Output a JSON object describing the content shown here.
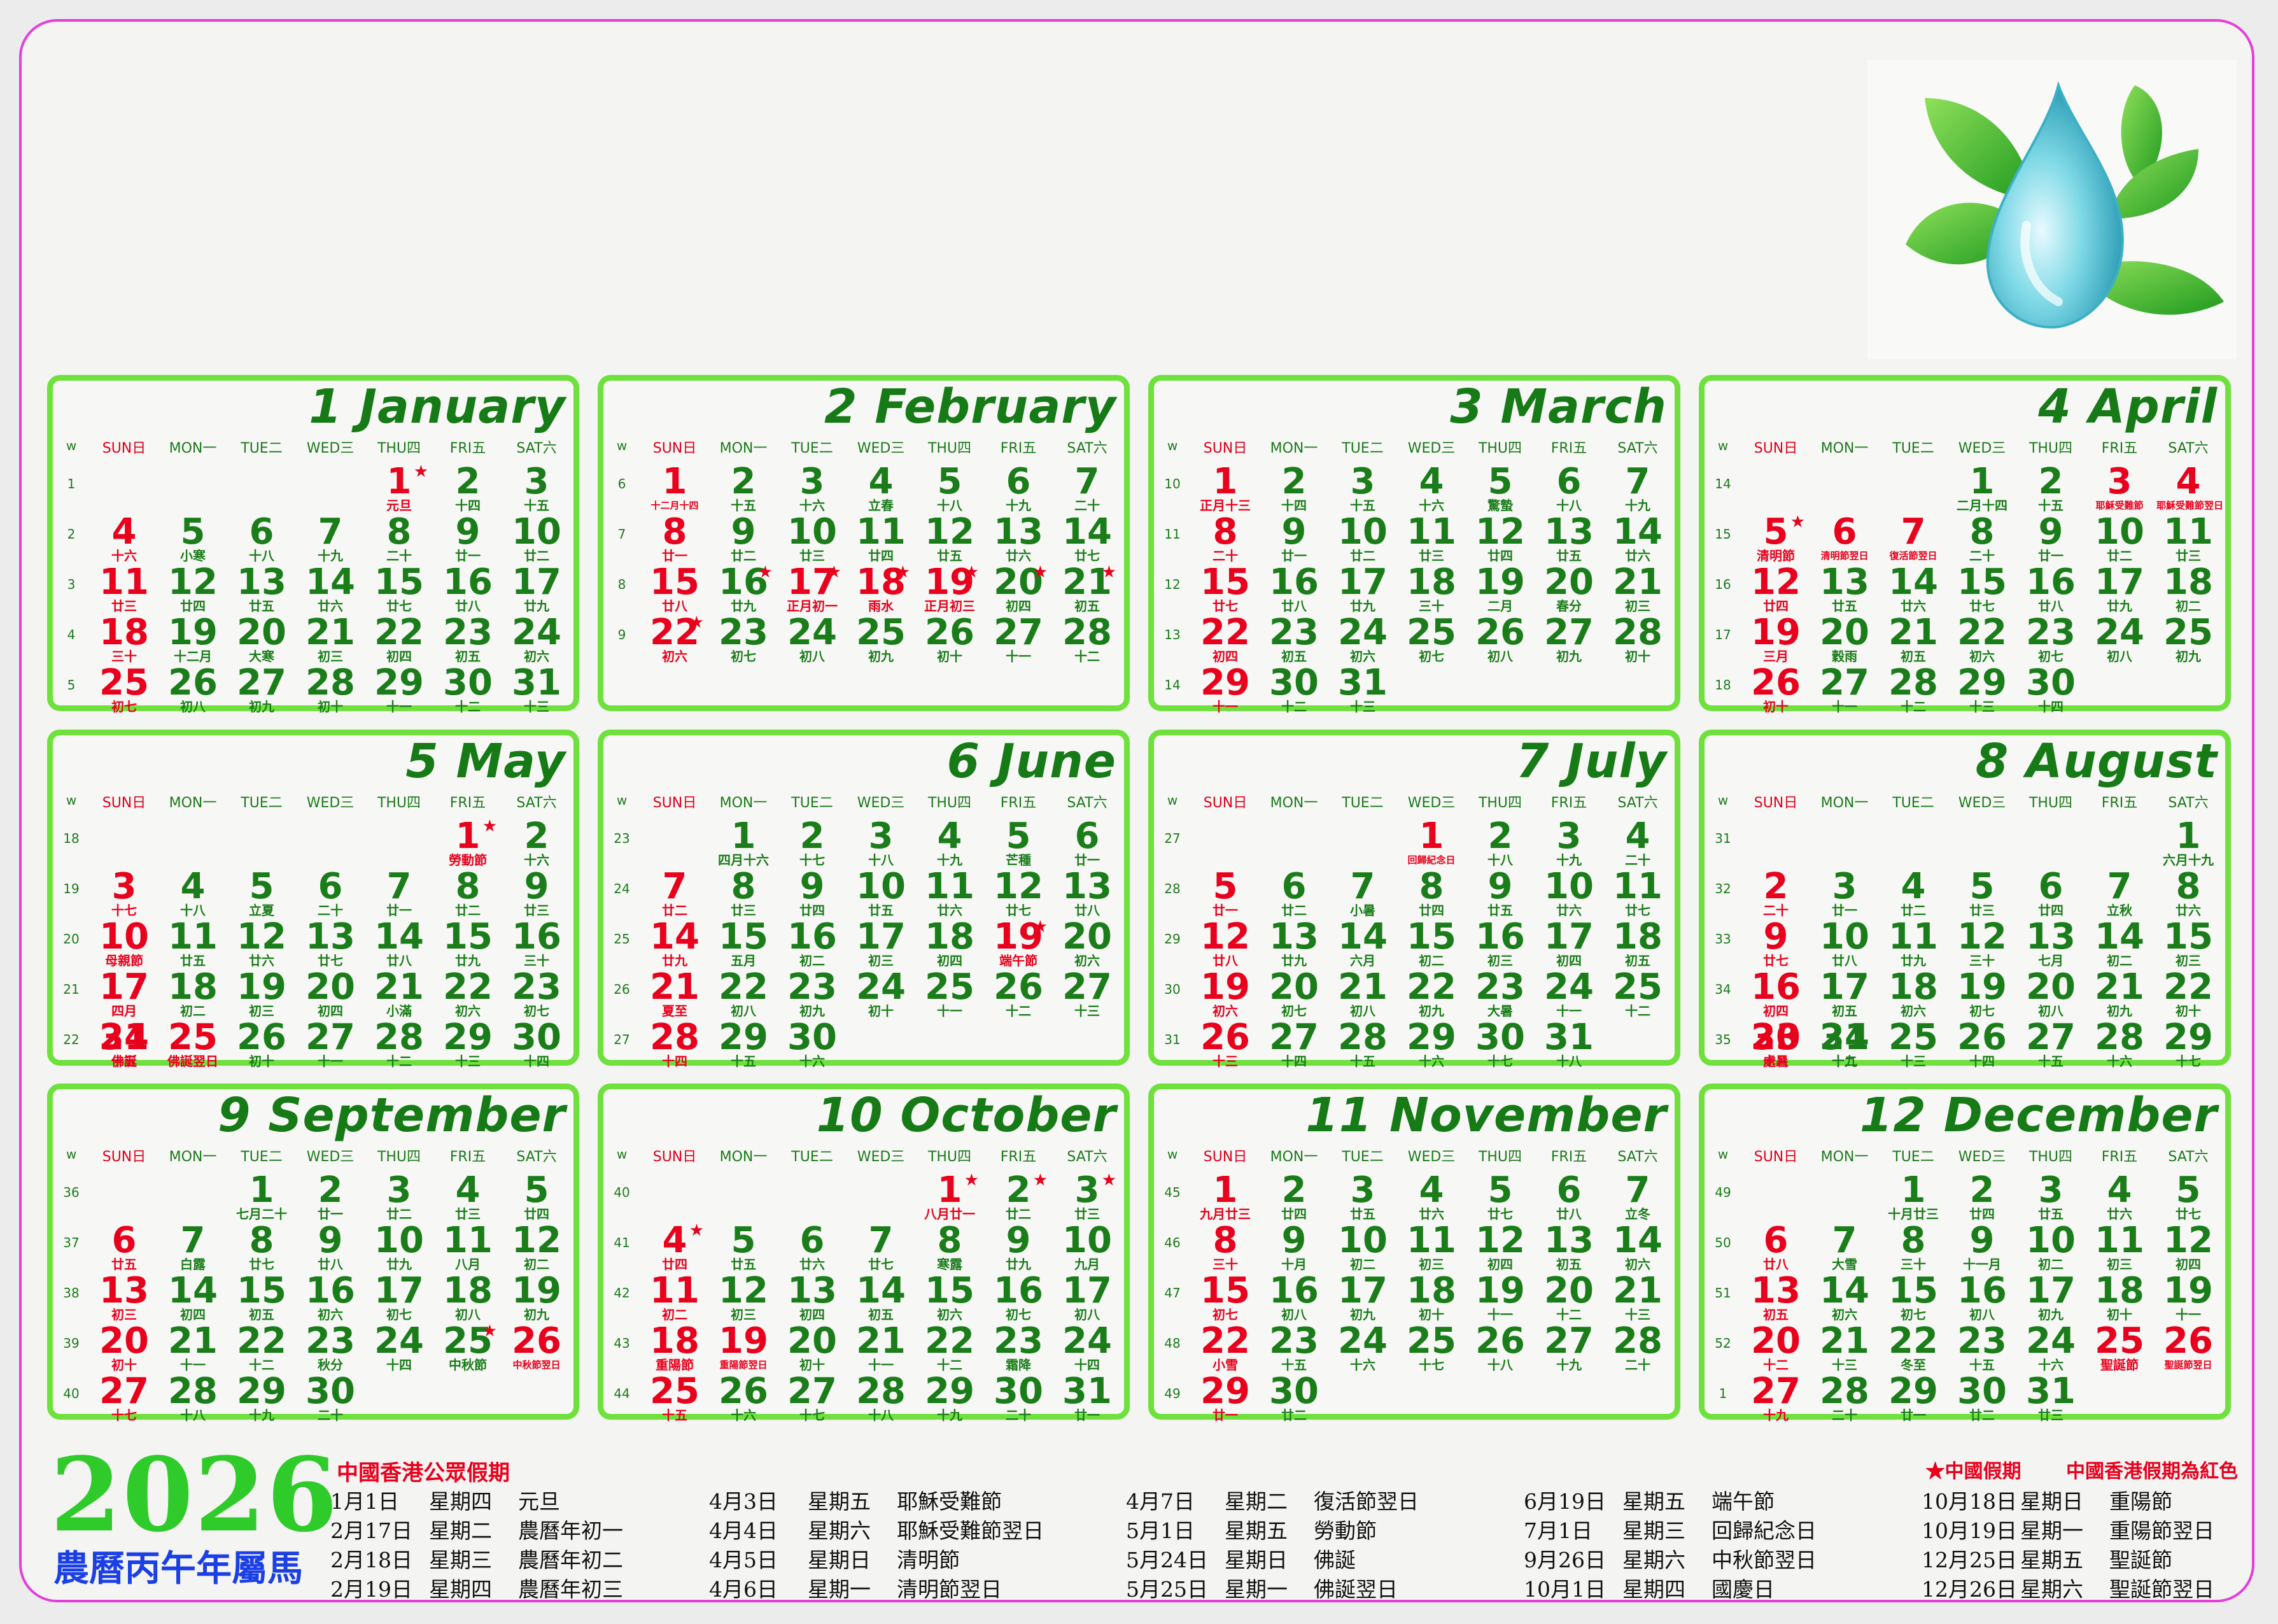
{
  "year": "2026",
  "zodiac": "農曆丙午年屬馬",
  "weekdays": [
    {
      "label": "SUN日",
      "sunday": true
    },
    {
      "label": "MON一"
    },
    {
      "label": "TUE二"
    },
    {
      "label": "WED三"
    },
    {
      "label": "THU四"
    },
    {
      "label": "FRI五"
    },
    {
      "label": "SAT六"
    }
  ],
  "week_label": "w",
  "months": [
    {
      "title": "1 January",
      "start": 4,
      "days": 31,
      "weeks": [
        1,
        2,
        3,
        4,
        5
      ],
      "lunar": [
        "元旦",
        "十四",
        "十五",
        "十六",
        "小寒",
        "十八",
        "十九",
        "二十",
        "廿一",
        "廿二",
        "廿三",
        "廿四",
        "廿五",
        "廿六",
        "廿七",
        "廿八",
        "廿九",
        "三十",
        "十二月",
        "大寒",
        "初三",
        "初四",
        "初五",
        "初六",
        "初七",
        "初八",
        "初九",
        "初十",
        "十一",
        "十二",
        "十三"
      ],
      "red": [
        1,
        4,
        11,
        18,
        25
      ],
      "stars": [
        1
      ]
    },
    {
      "title": "2 February",
      "start": 0,
      "days": 28,
      "weeks": [
        6,
        7,
        8,
        9
      ],
      "lunar": [
        "十二月十四",
        "十五",
        "十六",
        "立春",
        "十八",
        "十九",
        "二十",
        "廿一",
        "廿二",
        "廿三",
        "廿四",
        "廿五",
        "廿六",
        "廿七",
        "廿八",
        "廿九",
        "正月初一",
        "雨水",
        "正月初三",
        "初四",
        "初五",
        "初六",
        "初七",
        "初八",
        "初九",
        "初十",
        "十一",
        "十二"
      ],
      "red": [
        1,
        8,
        15,
        17,
        18,
        19,
        22
      ],
      "stars": [
        16,
        17,
        18,
        19,
        20,
        21,
        22
      ]
    },
    {
      "title": "3 March",
      "start": 0,
      "days": 31,
      "weeks": [
        10,
        11,
        12,
        13,
        14
      ],
      "lunar": [
        "正月十三",
        "十四",
        "十五",
        "十六",
        "驚蟄",
        "十八",
        "十九",
        "二十",
        "廿一",
        "廿二",
        "廿三",
        "廿四",
        "廿五",
        "廿六",
        "廿七",
        "廿八",
        "廿九",
        "三十",
        "二月",
        "春分",
        "初三",
        "初四",
        "初五",
        "初六",
        "初七",
        "初八",
        "初九",
        "初十",
        "十一",
        "十二",
        "十三"
      ],
      "red": [
        1,
        8,
        15,
        22,
        29
      ],
      "stars": []
    },
    {
      "title": "4 April",
      "start": 3,
      "days": 30,
      "weeks": [
        14,
        15,
        16,
        17,
        18
      ],
      "lunar": [
        "二月十四",
        "十五",
        "耶穌受難節",
        "耶穌受難節翌日",
        "清明節",
        "清明節翌日",
        "復活節翌日",
        "二十",
        "廿一",
        "廿二",
        "廿三",
        "廿四",
        "廿五",
        "廿六",
        "廿七",
        "廿八",
        "廿九",
        "初二",
        "三月",
        "穀雨",
        "初五",
        "初六",
        "初七",
        "初八",
        "初九",
        "初十",
        "十一",
        "十二",
        "十三",
        "十四"
      ],
      "red": [
        3,
        4,
        5,
        6,
        7,
        12,
        19,
        26
      ],
      "stars": [
        5
      ]
    },
    {
      "title": "5 May",
      "start": 5,
      "days": 31,
      "weeks": [
        18,
        19,
        20,
        21,
        22
      ],
      "lunar": [
        "勞動節",
        "十六",
        "十七",
        "十八",
        "立夏",
        "二十",
        "廿一",
        "廿二",
        "廿三",
        "母親節",
        "廿五",
        "廿六",
        "廿七",
        "廿八",
        "廿九",
        "三十",
        "四月",
        "初二",
        "初三",
        "初四",
        "小滿",
        "初六",
        "初七",
        "佛誕",
        "佛誕翌日",
        "初十",
        "十一",
        "十二",
        "十三",
        "十四",
        "十五"
      ],
      "red": [
        1,
        3,
        10,
        17,
        24,
        25,
        31
      ],
      "stars": [
        1
      ]
    },
    {
      "title": "6 June",
      "start": 1,
      "days": 30,
      "weeks": [
        23,
        24,
        25,
        26,
        27
      ],
      "lunar": [
        "四月十六",
        "十七",
        "十八",
        "十九",
        "芒種",
        "廿一",
        "廿二",
        "廿三",
        "廿四",
        "廿五",
        "廿六",
        "廿七",
        "廿八",
        "廿九",
        "五月",
        "初二",
        "初三",
        "初四",
        "端午節",
        "初六",
        "夏至",
        "初八",
        "初九",
        "初十",
        "十一",
        "十二",
        "十三",
        "十四",
        "十五",
        "十六"
      ],
      "red": [
        7,
        14,
        19,
        21,
        28
      ],
      "stars": [
        19
      ]
    },
    {
      "title": "7 July",
      "start": 3,
      "days": 31,
      "weeks": [
        27,
        28,
        29,
        30,
        31
      ],
      "lunar": [
        "回歸紀念日",
        "十八",
        "十九",
        "二十",
        "廿一",
        "廿二",
        "小暑",
        "廿四",
        "廿五",
        "廿六",
        "廿七",
        "廿八",
        "廿九",
        "六月",
        "初二",
        "初三",
        "初四",
        "初五",
        "初六",
        "初七",
        "初八",
        "初九",
        "大暑",
        "十一",
        "十二",
        "十三",
        "十四",
        "十五",
        "十六",
        "十七",
        "十八"
      ],
      "red": [
        1,
        5,
        12,
        19,
        26
      ],
      "stars": []
    },
    {
      "title": "8 August",
      "start": 6,
      "days": 31,
      "weeks": [
        31,
        32,
        33,
        34,
        35
      ],
      "lunar": [
        "六月十九",
        "二十",
        "廿一",
        "廿二",
        "廿三",
        "廿四",
        "立秋",
        "廿六",
        "廿七",
        "廿八",
        "廿九",
        "三十",
        "七月",
        "初二",
        "初三",
        "初四",
        "初五",
        "初六",
        "初七",
        "初八",
        "初九",
        "初十",
        "處暑",
        "十二",
        "十三",
        "十四",
        "十五",
        "十六",
        "十七",
        "十八",
        "十九"
      ],
      "red": [
        2,
        9,
        16,
        23,
        30
      ],
      "stars": []
    },
    {
      "title": "9 September",
      "start": 2,
      "days": 30,
      "weeks": [
        36,
        37,
        38,
        39,
        40
      ],
      "lunar": [
        "七月二十",
        "廿一",
        "廿二",
        "廿三",
        "廿四",
        "廿五",
        "白露",
        "廿七",
        "廿八",
        "廿九",
        "八月",
        "初二",
        "初三",
        "初四",
        "初五",
        "初六",
        "初七",
        "初八",
        "初九",
        "初十",
        "十一",
        "十二",
        "秋分",
        "十四",
        "中秋節",
        "中秋節翌日",
        "十七",
        "十八",
        "十九",
        "二十"
      ],
      "red": [
        6,
        13,
        20,
        26,
        27
      ],
      "stars": [
        25
      ]
    },
    {
      "title": "10 October",
      "start": 4,
      "days": 31,
      "weeks": [
        40,
        41,
        42,
        43,
        44
      ],
      "lunar": [
        "八月廿一",
        "廿二",
        "廿三",
        "廿四",
        "廿五",
        "廿六",
        "廿七",
        "寒露",
        "廿九",
        "九月",
        "初二",
        "初三",
        "初四",
        "初五",
        "初六",
        "初七",
        "初八",
        "重陽節",
        "重陽節翌日",
        "初十",
        "十一",
        "十二",
        "霜降",
        "十四",
        "十五",
        "十六",
        "十七",
        "十八",
        "十九",
        "二十",
        "廿一"
      ],
      "red": [
        1,
        4,
        11,
        18,
        19,
        25
      ],
      "stars": [
        1,
        2,
        3,
        4
      ]
    },
    {
      "title": "11 November",
      "start": 0,
      "days": 30,
      "weeks": [
        45,
        46,
        47,
        48,
        49
      ],
      "lunar": [
        "九月廿三",
        "廿四",
        "廿五",
        "廿六",
        "廿七",
        "廿八",
        "立冬",
        "三十",
        "十月",
        "初二",
        "初三",
        "初四",
        "初五",
        "初六",
        "初七",
        "初八",
        "初九",
        "初十",
        "十一",
        "十二",
        "十三",
        "小雪",
        "十五",
        "十六",
        "十七",
        "十八",
        "十九",
        "二十",
        "廿一",
        "廿二"
      ],
      "red": [
        1,
        8,
        15,
        22,
        29
      ],
      "stars": []
    },
    {
      "title": "12 December",
      "start": 2,
      "days": 31,
      "weeks": [
        49,
        50,
        51,
        52,
        1
      ],
      "lunar": [
        "十月廿三",
        "廿四",
        "廿五",
        "廿六",
        "廿七",
        "廿八",
        "大雪",
        "三十",
        "十一月",
        "初二",
        "初三",
        "初四",
        "初五",
        "初六",
        "初七",
        "初八",
        "初九",
        "初十",
        "十一",
        "十二",
        "十三",
        "冬至",
        "十五",
        "十六",
        "聖誕節",
        "聖誕節翌日",
        "十九",
        "二十",
        "廿一",
        "廿二",
        "廿三"
      ],
      "red": [
        6,
        13,
        20,
        25,
        26,
        27
      ],
      "stars": []
    }
  ],
  "holidays": {
    "title": "中國香港公眾假期",
    "legend_star": "★中國假期",
    "legend_red": "中國香港假期為紅色",
    "columns": [
      [
        [
          "1月1日",
          "星期四",
          "元旦"
        ],
        [
          "2月17日",
          "星期二",
          "農曆年初一"
        ],
        [
          "2月18日",
          "星期三",
          "農曆年初二"
        ],
        [
          "2月19日",
          "星期四",
          "農曆年初三"
        ]
      ],
      [
        [
          "4月3日",
          "星期五",
          "耶穌受難節"
        ],
        [
          "4月4日",
          "星期六",
          "耶穌受難節翌日"
        ],
        [
          "4月5日",
          "星期日",
          "清明節"
        ],
        [
          "4月6日",
          "星期一",
          "清明節翌日"
        ]
      ],
      [
        [
          "4月7日",
          "星期二",
          "復活節翌日"
        ],
        [
          "5月1日",
          "星期五",
          "勞動節"
        ],
        [
          "5月24日",
          "星期日",
          "佛誕"
        ],
        [
          "5月25日",
          "星期一",
          "佛誕翌日"
        ]
      ],
      [
        [
          "6月19日",
          "星期五",
          "端午節"
        ],
        [
          "7月1日",
          "星期三",
          "回歸紀念日"
        ],
        [
          "9月26日",
          "星期六",
          "中秋節翌日"
        ],
        [
          "10月1日",
          "星期四",
          "國慶日"
        ]
      ],
      [
        [
          "10月18日",
          "星期日",
          "重陽節"
        ],
        [
          "10月19日",
          "星期一",
          "重陽節翌日"
        ],
        [
          "12月25日",
          "星期五",
          "聖誕節"
        ],
        [
          "12月26日",
          "星期六",
          "聖誕節翌日"
        ]
      ]
    ]
  }
}
